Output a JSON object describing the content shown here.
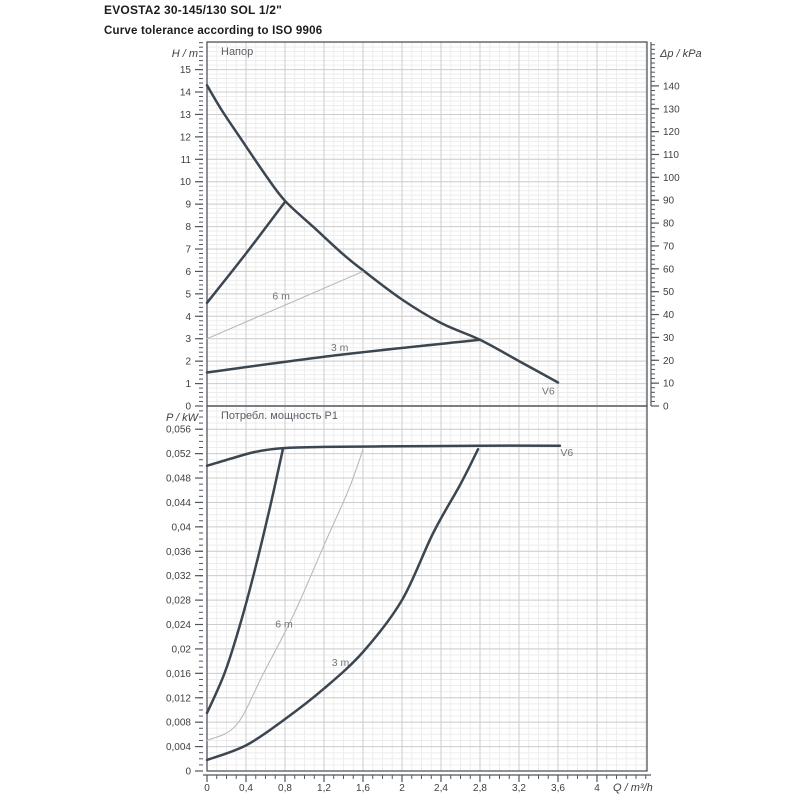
{
  "page": {
    "title": "EVOSTA2 30-145/130 SOL 1/2\"",
    "subtitle": "Curve tolerance according to ISO 9906"
  },
  "colors": {
    "curve": "#3c4650",
    "thin_curve": "#b7bbbf",
    "grid_major": "#cdcdcd",
    "grid_minor": "#ededed",
    "axis": "#50565c",
    "tick_text": "#3f3f3f",
    "curve_label_text": "#71777f"
  },
  "chart_data": [
    {
      "type": "line",
      "title": "Напор",
      "ylabel": "H / m",
      "y2label": "Δp / kPa",
      "xlim": [
        0,
        4.513
      ],
      "ylim": [
        0,
        16.23
      ],
      "y2lim": [
        0,
        159.2
      ],
      "x_ticks": {
        "values": [
          0,
          0.4,
          0.8,
          1.2,
          1.6,
          2,
          2.4,
          2.8,
          3.2,
          3.6,
          4
        ],
        "minor_step": 0.1
      },
      "y_ticks": {
        "values": [
          0,
          1,
          2,
          3,
          4,
          5,
          6,
          7,
          8,
          9,
          10,
          11,
          12,
          13,
          14,
          15
        ],
        "labels": [
          "0",
          "1",
          "2",
          "3",
          "4",
          "5",
          "6",
          "7",
          "8",
          "9",
          "10",
          "11",
          "12",
          "13",
          "14",
          "15"
        ],
        "minor_step": 0.2
      },
      "y2_ticks": {
        "values": [
          0,
          10,
          20,
          30,
          40,
          50,
          60,
          70,
          80,
          90,
          100,
          110,
          120,
          130,
          140
        ],
        "labels": [
          "0",
          "10",
          "20",
          "30",
          "40",
          "50",
          "60",
          "70",
          "80",
          "90",
          "100",
          "110",
          "120",
          "130",
          "140"
        ],
        "minor_step": 2
      },
      "series": [
        {
          "name": "max-speed-V6",
          "label": "V6",
          "label_at": [
            3.5,
            0.52
          ],
          "style": "thick",
          "points": [
            [
              0,
              14.3
            ],
            [
              0.15,
              13.2
            ],
            [
              0.35,
              11.9
            ],
            [
              0.6,
              10.3
            ],
            [
              0.8,
              9.15
            ],
            [
              1.1,
              7.95
            ],
            [
              1.4,
              6.75
            ],
            [
              1.6,
              6.05
            ],
            [
              2.0,
              4.75
            ],
            [
              2.4,
              3.7
            ],
            [
              2.8,
              2.95
            ],
            [
              3.2,
              2.0
            ],
            [
              3.6,
              1.05
            ]
          ]
        },
        {
          "name": "upper-limit",
          "label": "",
          "style": "thick",
          "points": [
            [
              0,
              4.6
            ],
            [
              0.4,
              6.8
            ],
            [
              0.8,
              9.1
            ]
          ]
        },
        {
          "name": "setting-6m",
          "label": "6 m",
          "label_at": [
            0.76,
            4.75
          ],
          "style": "thin",
          "points": [
            [
              0,
              3.0
            ],
            [
              0.8,
              4.5
            ],
            [
              1.6,
              6.0
            ]
          ]
        },
        {
          "name": "setting-3m",
          "label": "3 m",
          "label_at": [
            1.36,
            2.45
          ],
          "style": "thick",
          "points": [
            [
              0,
              1.5
            ],
            [
              1.4,
              2.3
            ],
            [
              2.8,
              2.95
            ]
          ]
        }
      ]
    },
    {
      "type": "line",
      "title": "Потребл. мощность P1",
      "ylabel": "P / kW",
      "xlabel": "Q / m³/h",
      "xlim": [
        0,
        4.513
      ],
      "ylim": [
        0,
        0.0598
      ],
      "x_ticks": {
        "values": [
          0,
          0.4,
          0.8,
          1.2,
          1.6,
          2,
          2.4,
          2.8,
          3.2,
          3.6,
          4
        ],
        "labels": [
          "0",
          "0,4",
          "0,8",
          "1,2",
          "1,6",
          "2",
          "2,4",
          "2,8",
          "3,2",
          "3,6",
          "4"
        ],
        "minor_step": 0.1
      },
      "y_ticks": {
        "values": [
          0,
          0.004,
          0.008,
          0.012,
          0.016,
          0.02,
          0.024,
          0.028,
          0.032,
          0.036,
          0.04,
          0.044,
          0.048,
          0.052,
          0.056
        ],
        "labels": [
          "0",
          "0,004",
          "0,008",
          "0,012",
          "0,016",
          "0,02",
          "0,024",
          "0,028",
          "0,032",
          "0,036",
          "0,04",
          "0,044",
          "0,048",
          "0,052",
          "0,056"
        ],
        "minor_step": 0.001
      },
      "series": [
        {
          "name": "max-speed-V6",
          "label": "V6",
          "label_at": [
            3.69,
            0.0516
          ],
          "style": "thick",
          "points": [
            [
              0,
              0.05
            ],
            [
              0.25,
              0.0512
            ],
            [
              0.5,
              0.0523
            ],
            [
              0.78,
              0.0529
            ],
            [
              1.2,
              0.0531
            ],
            [
              2.0,
              0.0532
            ],
            [
              2.8,
              0.0533
            ],
            [
              3.62,
              0.0533
            ]
          ]
        },
        {
          "name": "upper-limit",
          "label": "",
          "style": "thick",
          "points": [
            [
              0,
              0.0095
            ],
            [
              0.18,
              0.016
            ],
            [
              0.34,
              0.024
            ],
            [
              0.5,
              0.0335
            ],
            [
              0.65,
              0.0435
            ],
            [
              0.78,
              0.0528
            ]
          ]
        },
        {
          "name": "setting-6m",
          "label": "6 m",
          "label_at": [
            0.79,
            0.0235
          ],
          "style": "thin",
          "points": [
            [
              0,
              0.005
            ],
            [
              0.3,
              0.0075
            ],
            [
              0.58,
              0.016
            ],
            [
              0.9,
              0.026
            ],
            [
              1.2,
              0.037
            ],
            [
              1.45,
              0.046
            ],
            [
              1.6,
              0.0527
            ]
          ]
        },
        {
          "name": "setting-3m",
          "label": "3 m",
          "label_at": [
            1.37,
            0.0172
          ],
          "style": "thick",
          "points": [
            [
              0,
              0.0018
            ],
            [
              0.4,
              0.0042
            ],
            [
              0.8,
              0.0085
            ],
            [
              1.2,
              0.0135
            ],
            [
              1.6,
              0.0195
            ],
            [
              2.0,
              0.028
            ],
            [
              2.32,
              0.039
            ],
            [
              2.6,
              0.047
            ],
            [
              2.78,
              0.0527
            ]
          ]
        }
      ]
    }
  ]
}
